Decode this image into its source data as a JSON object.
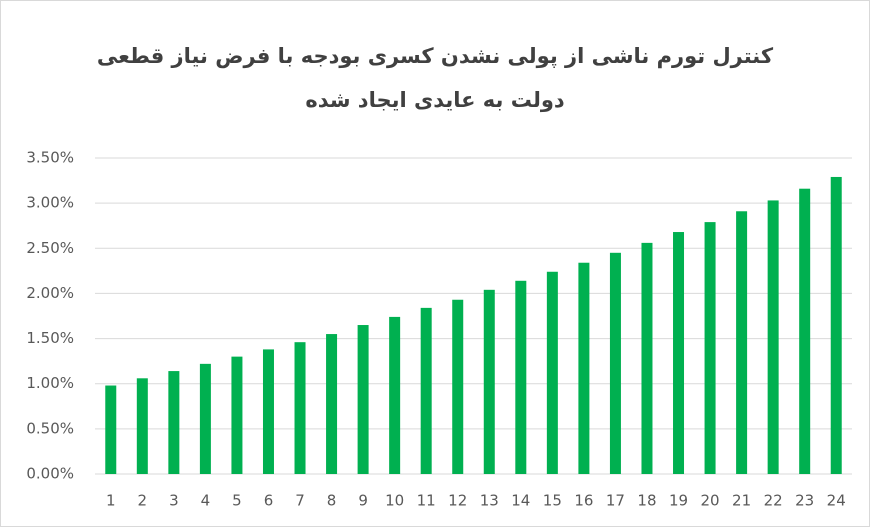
{
  "chart_data": {
    "type": "bar",
    "title": [
      "کنترل تورم ناشی از پولی نشدن کسری بودجه با فرض نیاز قطعی",
      "دولت به عایدی ایجاد شده"
    ],
    "categories": [
      "1",
      "2",
      "3",
      "4",
      "5",
      "6",
      "7",
      "8",
      "9",
      "10",
      "11",
      "12",
      "13",
      "14",
      "15",
      "16",
      "17",
      "18",
      "19",
      "20",
      "21",
      "22",
      "23",
      "24"
    ],
    "values": [
      0.98,
      1.06,
      1.14,
      1.22,
      1.3,
      1.38,
      1.46,
      1.55,
      1.65,
      1.74,
      1.84,
      1.93,
      2.04,
      2.14,
      2.24,
      2.34,
      2.45,
      2.56,
      2.68,
      2.79,
      2.91,
      3.03,
      3.16,
      3.29
    ],
    "color": "#00b050",
    "ylim": [
      0,
      3.5
    ],
    "yticks": [
      {
        "value": 0,
        "label": "0.00%"
      },
      {
        "value": 0.5,
        "label": "0.50%"
      },
      {
        "value": 1,
        "label": "1.00%"
      },
      {
        "value": 1.5,
        "label": "1.50%"
      },
      {
        "value": 2,
        "label": "2.00%"
      },
      {
        "value": 2.5,
        "label": "2.50%"
      },
      {
        "value": 3,
        "label": "3.00%"
      },
      {
        "value": 3.5,
        "label": "3.50%"
      }
    ],
    "grid": true
  }
}
